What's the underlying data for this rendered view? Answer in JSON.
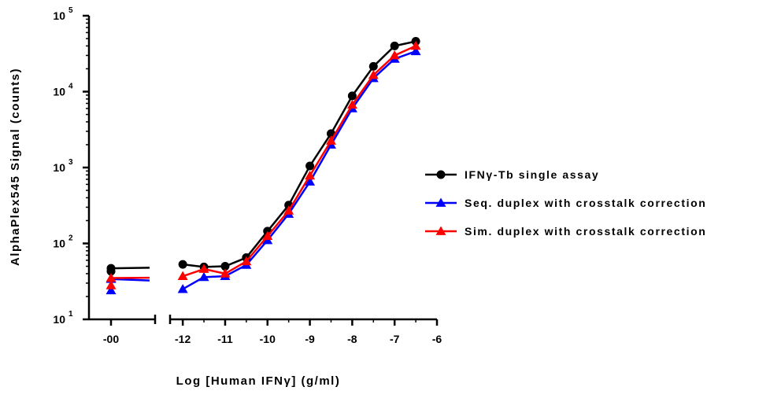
{
  "chart_data": {
    "type": "line",
    "xlabel": "Log [Human IFNγ] (g/ml)",
    "ylabel": "AlphaPlex545 Signal (counts)",
    "yscale": "log",
    "ylim": [
      10,
      100000
    ],
    "xlim": [
      -12.3,
      -6
    ],
    "x_ticks": [
      "-00",
      "-12",
      "-11",
      "-10",
      "-9",
      "-8",
      "-7",
      "-6"
    ],
    "y_ticks": [
      {
        "base": "10",
        "exp": "1"
      },
      {
        "base": "10",
        "exp": "2"
      },
      {
        "base": "10",
        "exp": "3"
      },
      {
        "base": "10",
        "exp": "4"
      },
      {
        "base": "10",
        "exp": "5"
      }
    ],
    "legend_position": "right",
    "series": [
      {
        "name": "IFNγ-Tb single assay",
        "color": "#000000",
        "marker": "circle",
        "zero_points": [
          47,
          43
        ],
        "x": [
          -12,
          -11.5,
          -11,
          -10.5,
          -10,
          -9.5,
          -9,
          -8.5,
          -8,
          -7.5,
          -7,
          -6.5
        ],
        "y": [
          53,
          49,
          50,
          65,
          145,
          320,
          1050,
          2800,
          8800,
          21500,
          40000,
          46000
        ]
      },
      {
        "name": "Seq. duplex with crosstalk correction",
        "color": "#0000ff",
        "marker": "triangle",
        "zero_points": [
          34,
          24
        ],
        "x": [
          -12,
          -11.5,
          -11,
          -10.5,
          -10,
          -9.5,
          -9,
          -8.5,
          -8,
          -7.5,
          -7,
          -6.5
        ],
        "y": [
          25,
          36,
          37,
          52,
          110,
          245,
          650,
          2000,
          6000,
          15000,
          27000,
          34000
        ]
      },
      {
        "name": "Sim. duplex with crosstalk correction",
        "color": "#ff0000",
        "marker": "triangle",
        "zero_points": [
          35,
          28
        ],
        "x": [
          -12,
          -11.5,
          -11,
          -10.5,
          -10,
          -9.5,
          -9,
          -8.5,
          -8,
          -7.5,
          -7,
          -6.5
        ],
        "y": [
          37,
          46,
          40,
          58,
          125,
          270,
          780,
          2250,
          6700,
          16500,
          30000,
          40000
        ]
      }
    ]
  }
}
